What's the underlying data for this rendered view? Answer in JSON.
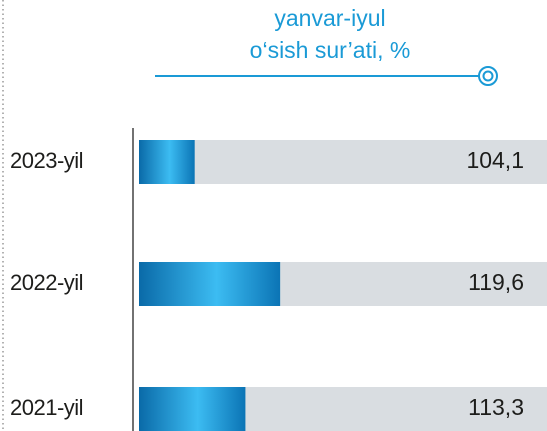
{
  "chart_data": {
    "type": "bar",
    "orientation": "horizontal",
    "title": "yanvar-iyul",
    "subtitle": "o‘sish sur’ati, %",
    "categories": [
      "2023-yil",
      "2022-yil",
      "2021-yil"
    ],
    "values": [
      104.1,
      119.6,
      113.3
    ],
    "value_labels": [
      "104,1",
      "119,6",
      "113,3"
    ],
    "color": "#1590d4",
    "xlim": [
      94,
      168
    ]
  }
}
